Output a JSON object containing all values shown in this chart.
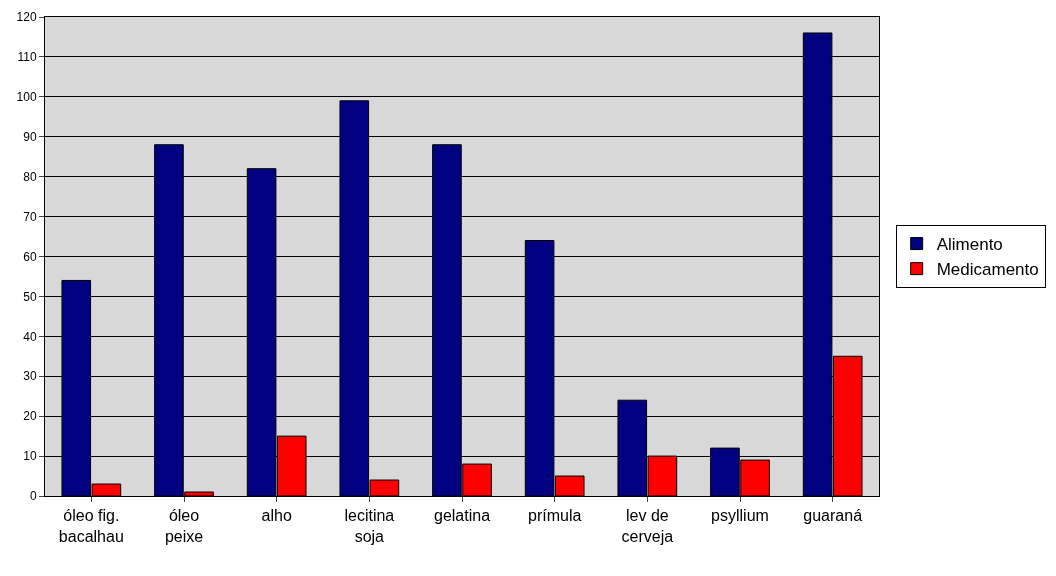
{
  "chart_data": {
    "type": "bar",
    "categories": [
      "óleo fig.\nbacalhau",
      "óleo\npeixe",
      "alho",
      "lecitina\nsoja",
      "gelatina",
      "prímula",
      "lev de\ncerveja",
      "psyllium",
      "guaraná"
    ],
    "series": [
      {
        "name": "Alimento",
        "color": "#000080",
        "values": [
          54,
          88,
          82,
          99,
          88,
          64,
          24,
          12,
          116
        ]
      },
      {
        "name": "Medicamento",
        "color": "#ff0000",
        "values": [
          3,
          1,
          15,
          4,
          8,
          5,
          10,
          9,
          35
        ]
      }
    ],
    "ylim": [
      0,
      120
    ],
    "yticks": [
      0,
      10,
      20,
      30,
      40,
      50,
      60,
      70,
      80,
      90,
      100,
      110,
      120
    ],
    "grid": "y",
    "legend": "right"
  }
}
